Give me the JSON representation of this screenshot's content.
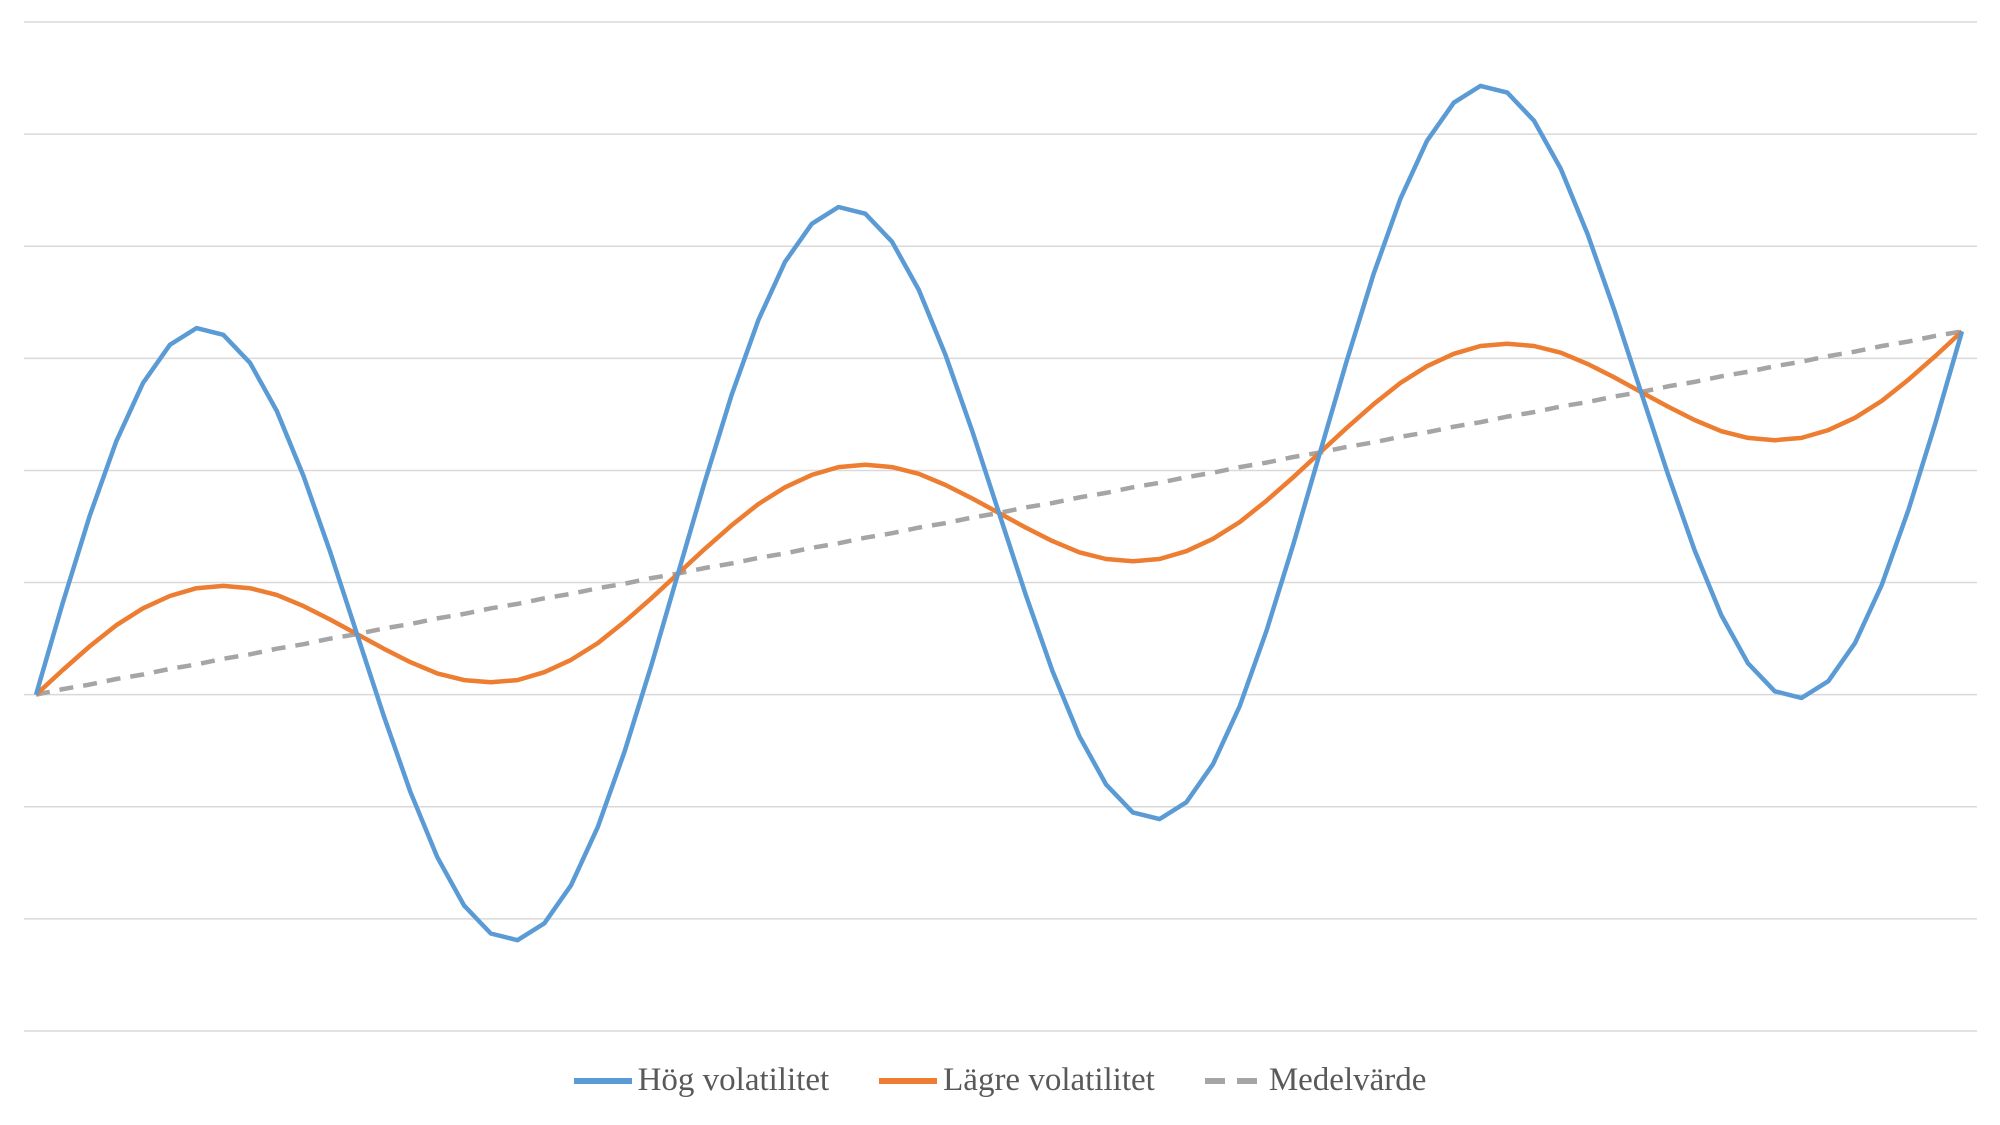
{
  "chart_data": {
    "type": "line",
    "title": "",
    "xlabel": "",
    "ylabel": "",
    "ylim": [
      -3,
      6
    ],
    "grid": true,
    "y_gridlines": [
      -3,
      -2,
      -1,
      0,
      1,
      2,
      3,
      4,
      5,
      6
    ],
    "legend_position": "bottom",
    "series": [
      {
        "name": "Hög volatilitet",
        "color": "#5b9bd5",
        "style": "solid",
        "values": [
          0,
          0.82,
          1.59,
          2.26,
          2.78,
          3.12,
          3.27,
          3.21,
          2.96,
          2.53,
          1.95,
          1.27,
          0.54,
          -0.19,
          -0.87,
          -1.45,
          -1.88,
          -2.13,
          -2.19,
          -2.04,
          -1.7,
          -1.18,
          -0.51,
          0.26,
          1.08,
          1.9,
          2.67,
          3.34,
          3.86,
          4.2,
          4.35,
          4.29,
          4.04,
          3.61,
          3.03,
          2.35,
          1.62,
          0.89,
          0.21,
          -0.37,
          -0.8,
          -1.05,
          -1.11,
          -0.96,
          -0.62,
          -0.1,
          0.57,
          1.34,
          2.16,
          2.98,
          3.75,
          4.42,
          4.94,
          5.28,
          5.43,
          5.37,
          5.12,
          4.69,
          4.11,
          3.43,
          2.7,
          1.97,
          1.29,
          0.71,
          0.28,
          0.03,
          -0.03,
          0.12,
          0.46,
          0.98,
          1.65,
          2.42,
          3.24
        ]
      },
      {
        "name": "Lägre volatilitet",
        "color": "#ed7d31",
        "style": "solid",
        "values": [
          0,
          0.22,
          0.43,
          0.62,
          0.77,
          0.88,
          0.95,
          0.97,
          0.95,
          0.89,
          0.79,
          0.67,
          0.54,
          0.41,
          0.29,
          0.19,
          0.13,
          0.11,
          0.13,
          0.2,
          0.31,
          0.46,
          0.65,
          0.86,
          1.08,
          1.3,
          1.51,
          1.7,
          1.85,
          1.96,
          2.03,
          2.05,
          2.03,
          1.97,
          1.87,
          1.75,
          1.62,
          1.49,
          1.37,
          1.27,
          1.21,
          1.19,
          1.21,
          1.28,
          1.39,
          1.54,
          1.73,
          1.94,
          2.16,
          2.38,
          2.59,
          2.78,
          2.93,
          3.04,
          3.11,
          3.13,
          3.11,
          3.05,
          2.95,
          2.83,
          2.7,
          2.57,
          2.45,
          2.35,
          2.29,
          2.27,
          2.29,
          2.36,
          2.47,
          2.62,
          2.81,
          3.02,
          3.24
        ]
      },
      {
        "name": "Medelvärde",
        "color": "#a5a5a5",
        "style": "dashed",
        "values": [
          0,
          0.05,
          0.09,
          0.14,
          0.18,
          0.23,
          0.27,
          0.32,
          0.36,
          0.41,
          0.45,
          0.5,
          0.54,
          0.59,
          0.63,
          0.68,
          0.72,
          0.77,
          0.81,
          0.86,
          0.9,
          0.95,
          0.99,
          1.04,
          1.08,
          1.13,
          1.17,
          1.22,
          1.26,
          1.31,
          1.35,
          1.4,
          1.44,
          1.49,
          1.53,
          1.58,
          1.62,
          1.67,
          1.71,
          1.76,
          1.8,
          1.85,
          1.89,
          1.94,
          1.98,
          2.03,
          2.07,
          2.12,
          2.16,
          2.21,
          2.25,
          2.3,
          2.34,
          2.39,
          2.43,
          2.48,
          2.52,
          2.57,
          2.61,
          2.66,
          2.7,
          2.75,
          2.79,
          2.84,
          2.88,
          2.93,
          2.97,
          3.02,
          3.06,
          3.11,
          3.15,
          3.2,
          3.24
        ]
      }
    ]
  }
}
